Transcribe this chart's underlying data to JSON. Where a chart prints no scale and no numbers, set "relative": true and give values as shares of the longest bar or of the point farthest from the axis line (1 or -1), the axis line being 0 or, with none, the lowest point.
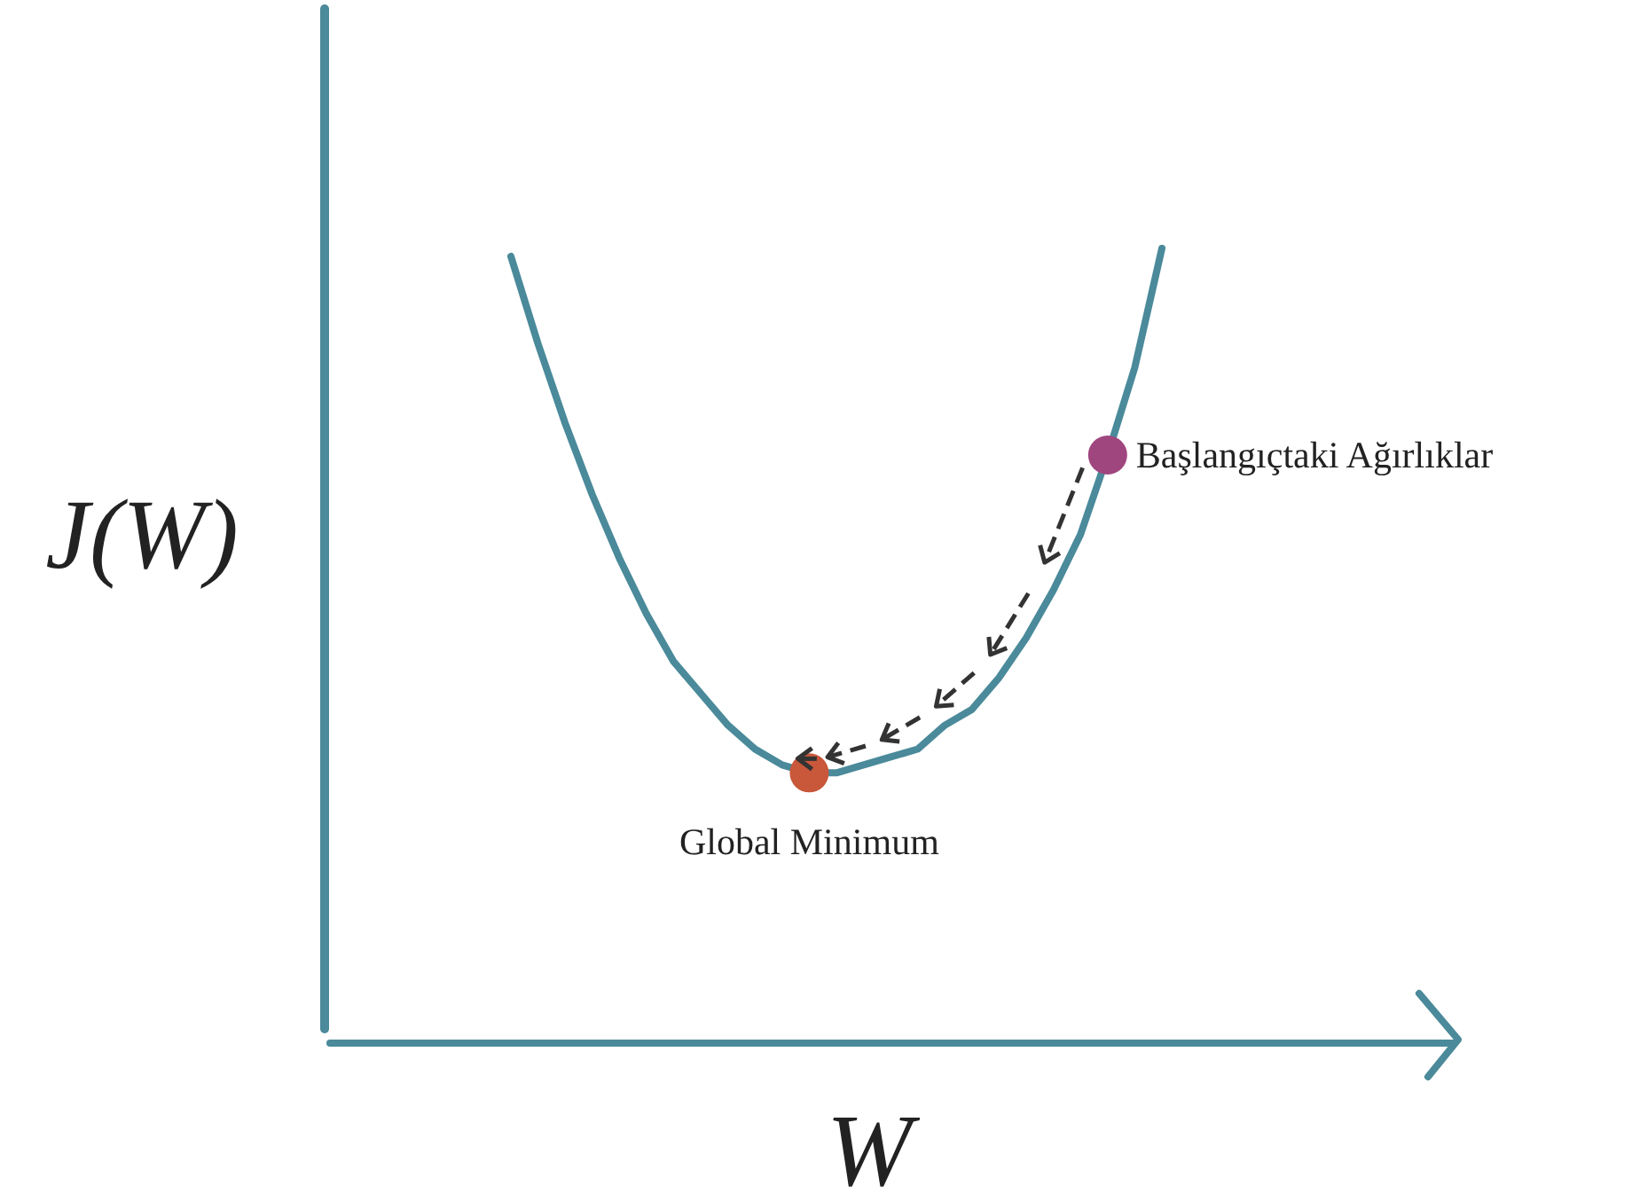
{
  "chart_data": {
    "type": "line",
    "relative": true,
    "xlabel": "W",
    "ylabel": "J(W)",
    "categories": [
      null,
      null,
      null,
      null,
      null,
      null,
      null,
      null,
      null,
      null,
      null,
      null,
      null,
      null,
      null,
      null,
      null,
      null,
      null,
      null,
      null,
      null,
      null,
      null,
      null
    ],
    "series": [
      {
        "color": "#4a8a9a",
        "values": [
          0.99,
          0.88,
          0.78,
          0.69,
          0.61,
          0.54,
          0.48,
          0.44,
          0.4,
          0.37,
          0.35,
          0.34,
          0.34,
          0.35,
          0.36,
          0.37,
          0.4,
          0.42,
          0.46,
          0.51,
          0.57,
          0.64,
          0.74,
          0.85,
          1.0
        ]
      }
    ],
    "annotations": [
      "Başlangıçtaki Ağırlıklar",
      {
        "text": "Global Minimum",
        "y": 0.34
      }
    ]
  }
}
